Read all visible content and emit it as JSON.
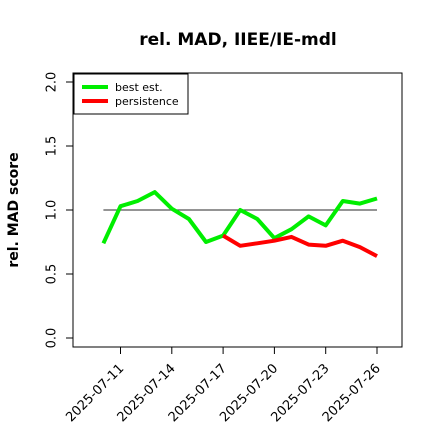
{
  "chart_data": {
    "type": "line",
    "title": "rel. MAD, IIEE/IE-mdl",
    "ylabel": "rel. MAD score",
    "xlabel": "",
    "ylim": [
      0,
      2.0
    ],
    "y_ticks": [
      "0.0",
      "0.5",
      "1.0",
      "1.5",
      "2.0"
    ],
    "x_ticks": [
      "2025-07-11",
      "2025-07-14",
      "2025-07-17",
      "2025-07-20",
      "2025-07-23",
      "2025-07-26"
    ],
    "reference_line": 1.0,
    "legend_position": "top-left",
    "grid": false,
    "series": [
      {
        "name": "best est.",
        "color": "#00ee00",
        "x": [
          "2025-07-10",
          "2025-07-11",
          "2025-07-12",
          "2025-07-13",
          "2025-07-14",
          "2025-07-15",
          "2025-07-16",
          "2025-07-17",
          "2025-07-18",
          "2025-07-19",
          "2025-07-20",
          "2025-07-21",
          "2025-07-22",
          "2025-07-23",
          "2025-07-24",
          "2025-07-25",
          "2025-07-26"
        ],
        "values": [
          0.74,
          1.03,
          1.07,
          1.14,
          1.01,
          0.93,
          0.75,
          0.8,
          1.0,
          0.93,
          0.78,
          0.85,
          0.95,
          0.88,
          1.07,
          1.05,
          1.09
        ]
      },
      {
        "name": "persistence",
        "color": "#ff0000",
        "x": [
          "2025-07-17",
          "2025-07-18",
          "2025-07-19",
          "2025-07-20",
          "2025-07-21",
          "2025-07-22",
          "2025-07-23",
          "2025-07-24",
          "2025-07-25",
          "2025-07-26"
        ],
        "values": [
          0.8,
          0.72,
          0.74,
          0.76,
          0.79,
          0.73,
          0.72,
          0.76,
          0.71,
          0.64
        ]
      }
    ]
  }
}
